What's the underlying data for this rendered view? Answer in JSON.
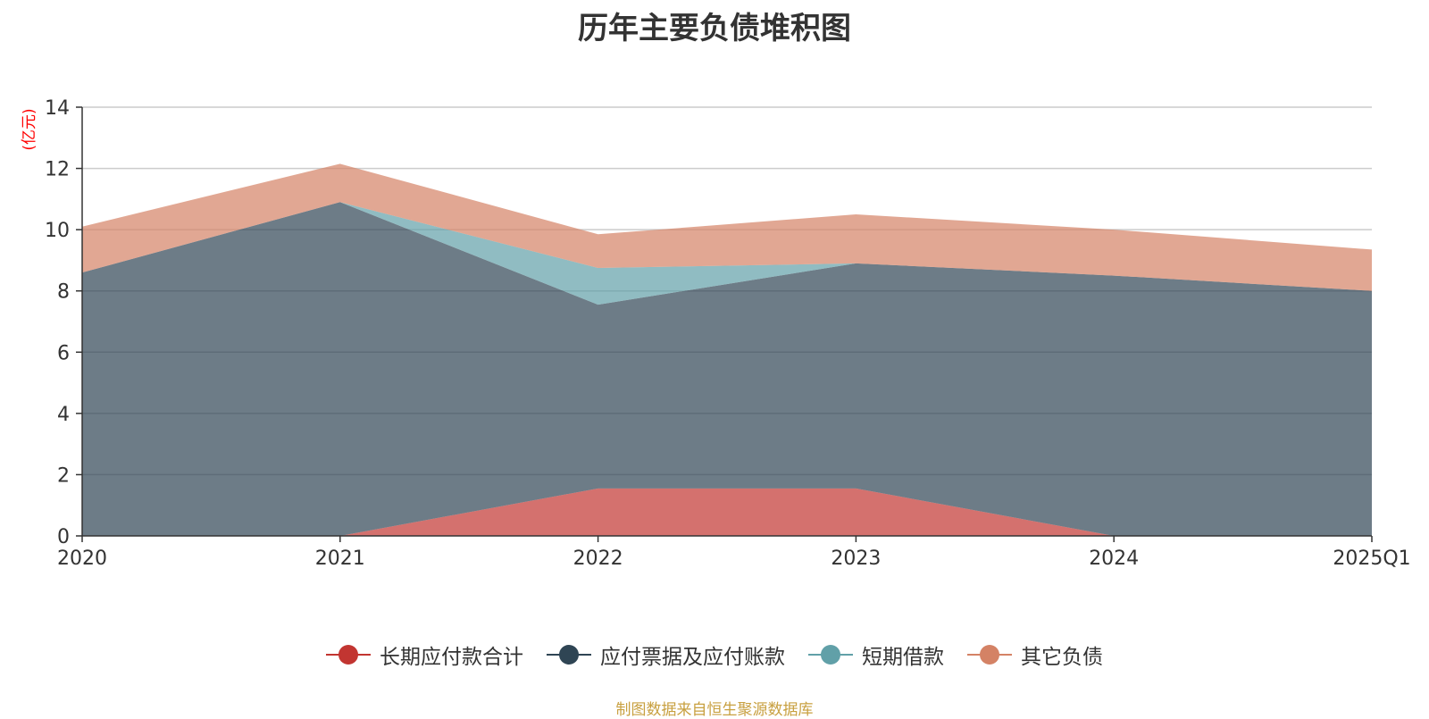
{
  "chart_data": {
    "type": "area",
    "stacked": true,
    "title": "历年主要负债堆积图",
    "ylabel": "(亿元)",
    "xlabel": "",
    "categories": [
      "2020",
      "2021",
      "2022",
      "2023",
      "2024",
      "2025Q1"
    ],
    "ylim": [
      0,
      14
    ],
    "yticks": [
      0,
      2,
      4,
      6,
      8,
      10,
      12,
      14
    ],
    "grid": true,
    "legend_position": "bottom",
    "series": [
      {
        "name": "长期应付款合计",
        "color": "#c23531",
        "values": [
          0,
          0,
          1.55,
          1.55,
          0,
          0
        ]
      },
      {
        "name": "应付票据及应付账款",
        "color": "#2f4554",
        "values": [
          8.6,
          10.9,
          6.0,
          7.35,
          8.5,
          8.0
        ]
      },
      {
        "name": "短期借款",
        "color": "#61a0a8",
        "values": [
          0,
          0,
          1.2,
          0,
          0,
          0
        ]
      },
      {
        "name": "其它负债",
        "color": "#d48265",
        "values": [
          1.5,
          1.25,
          1.1,
          1.6,
          1.5,
          1.35
        ]
      }
    ]
  },
  "source_note": "制图数据来自恒生聚源数据库",
  "colors": {
    "unit_label": "#ff0000",
    "source_note": "#c8a040",
    "axis": "#333333",
    "grid": "#cccccc"
  }
}
